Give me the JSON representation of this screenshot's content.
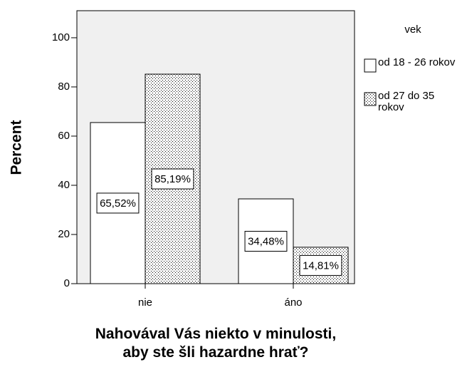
{
  "chart_data": {
    "type": "bar",
    "xlabel": "Nahovával Vás niekto v minulosti, aby ste šli hazardne hrať?",
    "ylabel": "Percent",
    "categories": [
      "nie",
      "áno"
    ],
    "legend_title": "vek",
    "series": [
      {
        "name": "od 18 - 26 rokov",
        "color": "#ffffff",
        "values": [
          65.52,
          34.48
        ],
        "value_labels": [
          "65,52%",
          "34,48%"
        ]
      },
      {
        "name": "od 27 do 35 rokov",
        "color": "#ffffff",
        "hatch": "dots",
        "values": [
          85.19,
          14.81
        ],
        "value_labels": [
          "85,19%",
          "14,81%"
        ]
      }
    ],
    "ylim": [
      0,
      111
    ],
    "yticks": [
      0,
      20,
      40,
      60,
      80,
      100
    ],
    "plot_background": "#f0f0f0",
    "legend": "right"
  }
}
